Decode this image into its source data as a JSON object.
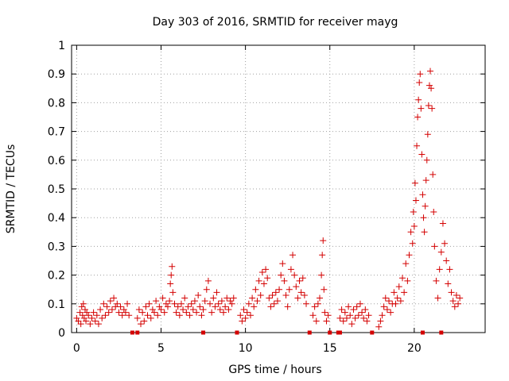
{
  "chart_data": {
    "type": "scatter",
    "title": "Day 303 of 2016, SRMTID for receiver mayg",
    "xlabel": "GPS time / hours",
    "ylabel": "SRMTID / TECUs",
    "xlim": [
      -0.3,
      24.2
    ],
    "ylim": [
      0,
      1
    ],
    "x_ticks": [
      0,
      5,
      10,
      15,
      20
    ],
    "y_ticks": [
      0,
      0.1,
      0.2,
      0.3,
      0.4,
      0.5,
      0.6,
      0.7,
      0.8,
      0.9,
      1
    ],
    "x_tick_labels": [
      "0",
      "5",
      "10",
      "15",
      "20"
    ],
    "y_tick_labels": [
      "0",
      "0.1",
      "0.2",
      "0.3",
      "0.4",
      "0.5",
      "0.6",
      "0.7",
      "0.8",
      "0.9",
      "1"
    ],
    "grid": true,
    "marker": "plus",
    "color": "#d40000",
    "series": [
      {
        "name": "SRMTID",
        "points": [
          [
            0.0,
            0.05
          ],
          [
            0.1,
            0.04
          ],
          [
            0.2,
            0.07
          ],
          [
            0.25,
            0.03
          ],
          [
            0.3,
            0.09
          ],
          [
            0.35,
            0.06
          ],
          [
            0.4,
            0.1
          ],
          [
            0.45,
            0.05
          ],
          [
            0.5,
            0.08
          ],
          [
            0.55,
            0.04
          ],
          [
            0.6,
            0.07
          ],
          [
            0.7,
            0.06
          ],
          [
            0.8,
            0.03
          ],
          [
            0.9,
            0.05
          ],
          [
            1.0,
            0.07
          ],
          [
            1.1,
            0.04
          ],
          [
            1.2,
            0.06
          ],
          [
            1.3,
            0.03
          ],
          [
            1.4,
            0.08
          ],
          [
            1.5,
            0.05
          ],
          [
            1.6,
            0.1
          ],
          [
            1.7,
            0.06
          ],
          [
            1.8,
            0.09
          ],
          [
            1.9,
            0.07
          ],
          [
            2.0,
            0.11
          ],
          [
            2.1,
            0.08
          ],
          [
            2.2,
            0.12
          ],
          [
            2.3,
            0.09
          ],
          [
            2.4,
            0.1
          ],
          [
            2.5,
            0.07
          ],
          [
            2.6,
            0.09
          ],
          [
            2.7,
            0.06
          ],
          [
            2.8,
            0.08
          ],
          [
            2.9,
            0.07
          ],
          [
            3.0,
            0.1
          ],
          [
            3.1,
            0.06
          ],
          [
            3.6,
            0.05
          ],
          [
            3.7,
            0.08
          ],
          [
            3.8,
            0.03
          ],
          [
            3.9,
            0.07
          ],
          [
            4.0,
            0.04
          ],
          [
            4.1,
            0.09
          ],
          [
            4.2,
            0.06
          ],
          [
            4.3,
            0.1
          ],
          [
            4.4,
            0.05
          ],
          [
            4.5,
            0.08
          ],
          [
            4.6,
            0.07
          ],
          [
            4.7,
            0.11
          ],
          [
            4.8,
            0.06
          ],
          [
            4.9,
            0.09
          ],
          [
            5.0,
            0.08
          ],
          [
            5.1,
            0.12
          ],
          [
            5.2,
            0.07
          ],
          [
            5.3,
            0.1
          ],
          [
            5.4,
            0.09
          ],
          [
            5.5,
            0.11
          ],
          [
            5.55,
            0.17
          ],
          [
            5.6,
            0.2
          ],
          [
            5.65,
            0.23
          ],
          [
            5.7,
            0.14
          ],
          [
            5.8,
            0.1
          ],
          [
            5.9,
            0.07
          ],
          [
            6.0,
            0.09
          ],
          [
            6.1,
            0.06
          ],
          [
            6.2,
            0.1
          ],
          [
            6.3,
            0.08
          ],
          [
            6.4,
            0.12
          ],
          [
            6.5,
            0.07
          ],
          [
            6.6,
            0.09
          ],
          [
            6.7,
            0.06
          ],
          [
            6.8,
            0.1
          ],
          [
            6.9,
            0.08
          ],
          [
            7.0,
            0.11
          ],
          [
            7.1,
            0.07
          ],
          [
            7.2,
            0.13
          ],
          [
            7.3,
            0.09
          ],
          [
            7.4,
            0.06
          ],
          [
            7.5,
            0.08
          ],
          [
            7.6,
            0.11
          ],
          [
            7.7,
            0.15
          ],
          [
            7.8,
            0.18
          ],
          [
            7.9,
            0.1
          ],
          [
            8.0,
            0.07
          ],
          [
            8.1,
            0.12
          ],
          [
            8.2,
            0.09
          ],
          [
            8.3,
            0.14
          ],
          [
            8.4,
            0.1
          ],
          [
            8.5,
            0.08
          ],
          [
            8.6,
            0.11
          ],
          [
            8.7,
            0.07
          ],
          [
            8.8,
            0.09
          ],
          [
            8.9,
            0.12
          ],
          [
            9.0,
            0.08
          ],
          [
            9.1,
            0.11
          ],
          [
            9.2,
            0.1
          ],
          [
            9.3,
            0.12
          ],
          [
            9.7,
            0.06
          ],
          [
            9.8,
            0.04
          ],
          [
            9.9,
            0.08
          ],
          [
            10.0,
            0.05
          ],
          [
            10.1,
            0.07
          ],
          [
            10.2,
            0.1
          ],
          [
            10.3,
            0.06
          ],
          [
            10.4,
            0.12
          ],
          [
            10.5,
            0.09
          ],
          [
            10.6,
            0.15
          ],
          [
            10.7,
            0.11
          ],
          [
            10.8,
            0.18
          ],
          [
            10.9,
            0.13
          ],
          [
            11.0,
            0.21
          ],
          [
            11.1,
            0.17
          ],
          [
            11.2,
            0.22
          ],
          [
            11.3,
            0.19
          ],
          [
            11.4,
            0.12
          ],
          [
            11.5,
            0.09
          ],
          [
            11.6,
            0.13
          ],
          [
            11.7,
            0.1
          ],
          [
            11.8,
            0.14
          ],
          [
            11.9,
            0.11
          ],
          [
            12.0,
            0.15
          ],
          [
            12.1,
            0.2
          ],
          [
            12.2,
            0.24
          ],
          [
            12.3,
            0.18
          ],
          [
            12.4,
            0.13
          ],
          [
            12.5,
            0.09
          ],
          [
            12.6,
            0.15
          ],
          [
            12.7,
            0.22
          ],
          [
            12.8,
            0.27
          ],
          [
            12.9,
            0.2
          ],
          [
            13.0,
            0.16
          ],
          [
            13.1,
            0.12
          ],
          [
            13.2,
            0.18
          ],
          [
            13.3,
            0.14
          ],
          [
            13.4,
            0.19
          ],
          [
            13.5,
            0.13
          ],
          [
            13.6,
            0.1
          ],
          [
            14.0,
            0.06
          ],
          [
            14.1,
            0.09
          ],
          [
            14.2,
            0.04
          ],
          [
            14.3,
            0.1
          ],
          [
            14.4,
            0.12
          ],
          [
            14.5,
            0.2
          ],
          [
            14.55,
            0.27
          ],
          [
            14.6,
            0.32
          ],
          [
            14.65,
            0.15
          ],
          [
            14.7,
            0.07
          ],
          [
            14.8,
            0.04
          ],
          [
            14.9,
            0.06
          ],
          [
            15.6,
            0.05
          ],
          [
            15.7,
            0.08
          ],
          [
            15.8,
            0.04
          ],
          [
            15.9,
            0.07
          ],
          [
            16.0,
            0.05
          ],
          [
            16.1,
            0.09
          ],
          [
            16.2,
            0.06
          ],
          [
            16.3,
            0.03
          ],
          [
            16.4,
            0.08
          ],
          [
            16.5,
            0.05
          ],
          [
            16.6,
            0.09
          ],
          [
            16.7,
            0.06
          ],
          [
            16.8,
            0.1
          ],
          [
            16.9,
            0.07
          ],
          [
            17.0,
            0.05
          ],
          [
            17.1,
            0.08
          ],
          [
            17.2,
            0.04
          ],
          [
            17.3,
            0.06
          ],
          [
            17.9,
            0.02
          ],
          [
            18.0,
            0.04
          ],
          [
            18.1,
            0.06
          ],
          [
            18.2,
            0.09
          ],
          [
            18.3,
            0.12
          ],
          [
            18.4,
            0.08
          ],
          [
            18.5,
            0.11
          ],
          [
            18.6,
            0.07
          ],
          [
            18.7,
            0.1
          ],
          [
            18.8,
            0.14
          ],
          [
            18.9,
            0.1
          ],
          [
            19.0,
            0.12
          ],
          [
            19.1,
            0.16
          ],
          [
            19.2,
            0.11
          ],
          [
            19.3,
            0.19
          ],
          [
            19.4,
            0.14
          ],
          [
            19.5,
            0.24
          ],
          [
            19.6,
            0.18
          ],
          [
            19.7,
            0.27
          ],
          [
            19.8,
            0.35
          ],
          [
            19.9,
            0.31
          ],
          [
            19.95,
            0.42
          ],
          [
            20.0,
            0.37
          ],
          [
            20.05,
            0.52
          ],
          [
            20.1,
            0.46
          ],
          [
            20.15,
            0.65
          ],
          [
            20.2,
            0.75
          ],
          [
            20.25,
            0.81
          ],
          [
            20.3,
            0.87
          ],
          [
            20.35,
            0.9
          ],
          [
            20.4,
            0.78
          ],
          [
            20.45,
            0.62
          ],
          [
            20.5,
            0.48
          ],
          [
            20.55,
            0.4
          ],
          [
            20.6,
            0.35
          ],
          [
            20.65,
            0.44
          ],
          [
            20.7,
            0.53
          ],
          [
            20.75,
            0.6
          ],
          [
            20.8,
            0.69
          ],
          [
            20.85,
            0.79
          ],
          [
            20.9,
            0.86
          ],
          [
            20.95,
            0.91
          ],
          [
            21.0,
            0.85
          ],
          [
            21.05,
            0.78
          ],
          [
            21.1,
            0.55
          ],
          [
            21.15,
            0.42
          ],
          [
            21.2,
            0.3
          ],
          [
            21.3,
            0.18
          ],
          [
            21.4,
            0.12
          ],
          [
            21.5,
            0.22
          ],
          [
            21.6,
            0.28
          ],
          [
            21.7,
            0.38
          ],
          [
            21.8,
            0.31
          ],
          [
            21.9,
            0.25
          ],
          [
            22.0,
            0.17
          ],
          [
            22.1,
            0.22
          ],
          [
            22.2,
            0.14
          ],
          [
            22.3,
            0.11
          ],
          [
            22.4,
            0.09
          ],
          [
            22.5,
            0.13
          ],
          [
            22.6,
            0.1
          ],
          [
            22.7,
            0.12
          ],
          [
            3.3,
            0.0
          ],
          [
            3.6,
            0.0
          ],
          [
            7.5,
            0.0
          ],
          [
            9.5,
            0.0
          ],
          [
            13.8,
            0.0
          ],
          [
            15.0,
            0.0
          ],
          [
            15.5,
            0.0
          ],
          [
            15.6,
            0.0
          ],
          [
            17.5,
            0.0
          ],
          [
            20.5,
            0.0
          ],
          [
            21.6,
            0.0
          ]
        ]
      }
    ]
  }
}
